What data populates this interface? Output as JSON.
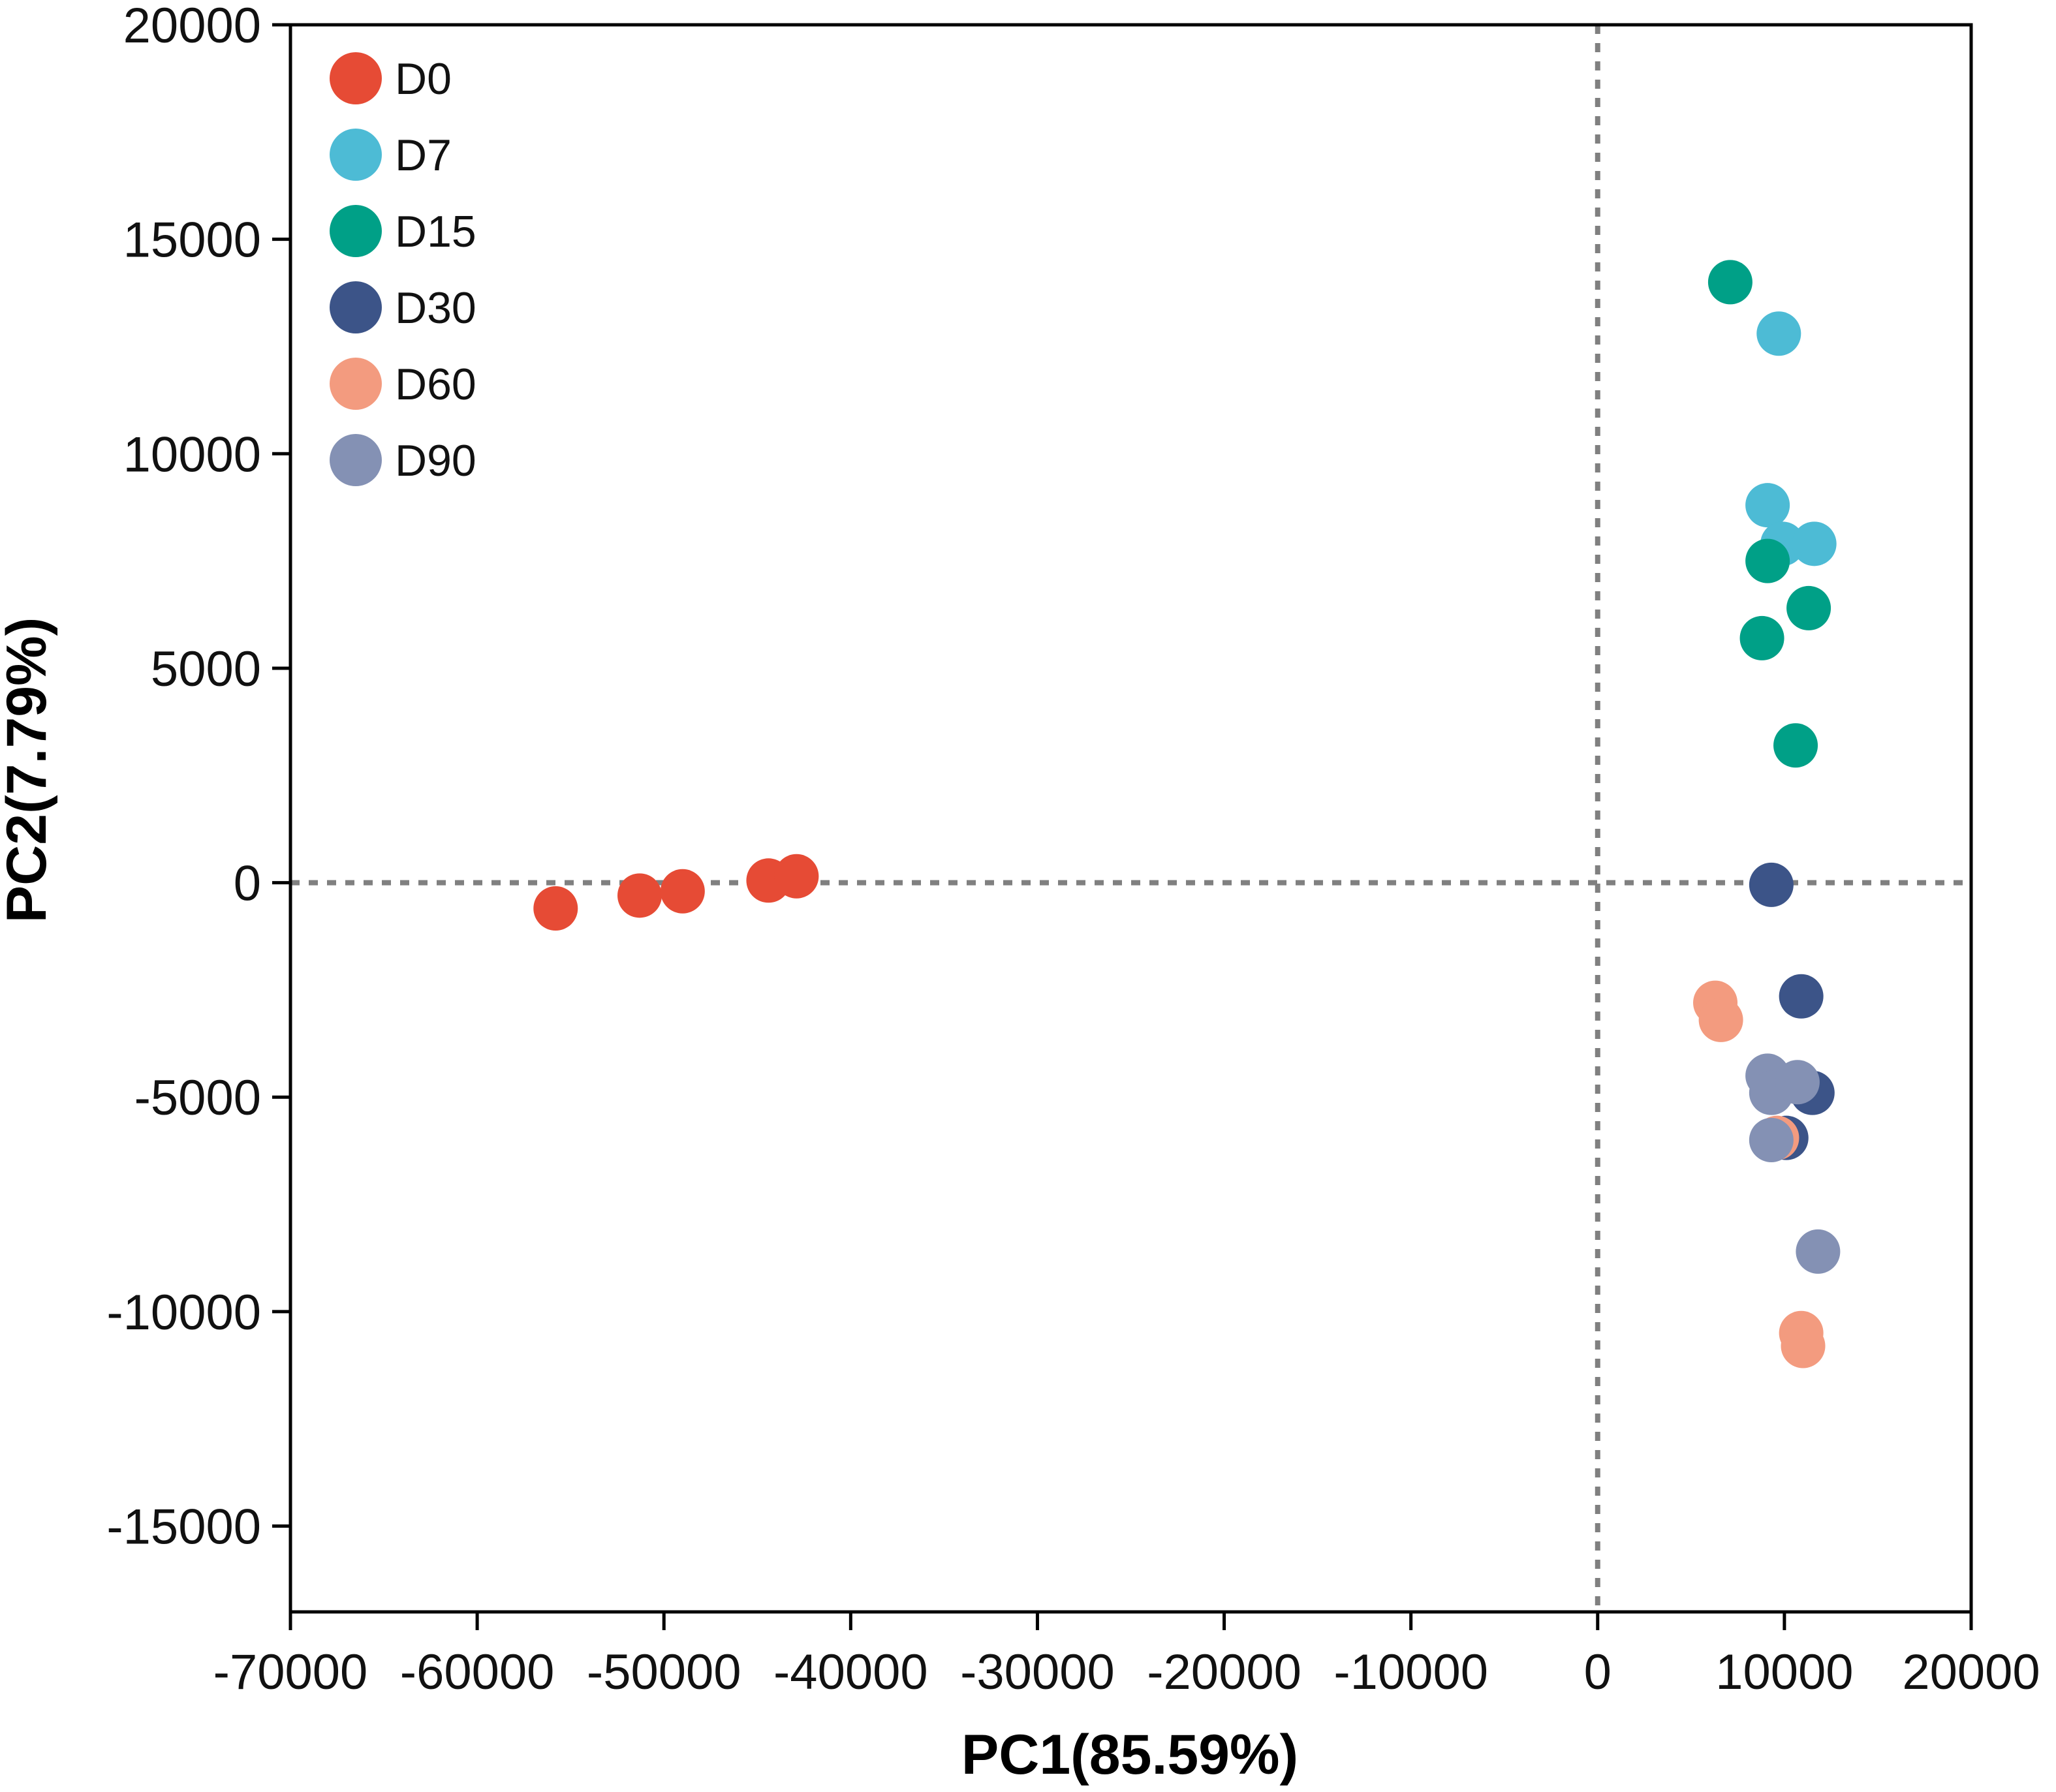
{
  "chart_data": {
    "type": "scatter",
    "title": "",
    "xlabel": "PC1(85.59%)",
    "ylabel": "PC2(7.79%)",
    "xlim": [
      -70000,
      20000
    ],
    "ylim": [
      -17000,
      20000
    ],
    "xticks": [
      -70000,
      -60000,
      -50000,
      -40000,
      -30000,
      -20000,
      -10000,
      0,
      10000,
      20000
    ],
    "yticks": [
      -15000,
      -10000,
      -5000,
      0,
      5000,
      10000,
      15000,
      20000
    ],
    "xtick_labels": [
      "-70000",
      "-60000",
      "-50000",
      "-40000",
      "-30000",
      "-20000",
      "-10000",
      "0",
      "10000",
      "20000"
    ],
    "ytick_labels": [
      "-15000",
      "-10000",
      "-5000",
      "0",
      "5000",
      "10000",
      "15000",
      "20000"
    ],
    "reference_lines": {
      "x": 0,
      "y": 0,
      "style": "dotted",
      "color": "#808080"
    },
    "legend_position": "top-left",
    "series": [
      {
        "name": "D0",
        "color": "#E64B35",
        "points": [
          [
            -55800,
            -600
          ],
          [
            -51300,
            -300
          ],
          [
            -49000,
            -200
          ],
          [
            -44400,
            50
          ],
          [
            -42900,
            150
          ]
        ]
      },
      {
        "name": "D7",
        "color": "#4DBBD5",
        "points": [
          [
            9700,
            12800
          ],
          [
            9100,
            8800
          ],
          [
            9900,
            7900
          ],
          [
            11600,
            7900
          ]
        ]
      },
      {
        "name": "D15",
        "color": "#00A087",
        "points": [
          [
            7100,
            14000
          ],
          [
            9100,
            7500
          ],
          [
            11300,
            6400
          ],
          [
            8800,
            5700
          ],
          [
            10600,
            3200
          ]
        ]
      },
      {
        "name": "D30",
        "color": "#3C5488",
        "points": [
          [
            9300,
            -50
          ],
          [
            10900,
            -2650
          ],
          [
            11500,
            -4900
          ],
          [
            10100,
            -5950
          ]
        ]
      },
      {
        "name": "D60",
        "color": "#F39B7F",
        "points": [
          [
            6300,
            -2800
          ],
          [
            6600,
            -3200
          ],
          [
            9600,
            -5950
          ],
          [
            10900,
            -10500
          ],
          [
            11000,
            -10800
          ]
        ]
      },
      {
        "name": "D90",
        "color": "#8491B4",
        "points": [
          [
            9100,
            -4500
          ],
          [
            9300,
            -4900
          ],
          [
            10700,
            -4650
          ],
          [
            9300,
            -6000
          ],
          [
            11800,
            -8600
          ]
        ]
      }
    ]
  }
}
